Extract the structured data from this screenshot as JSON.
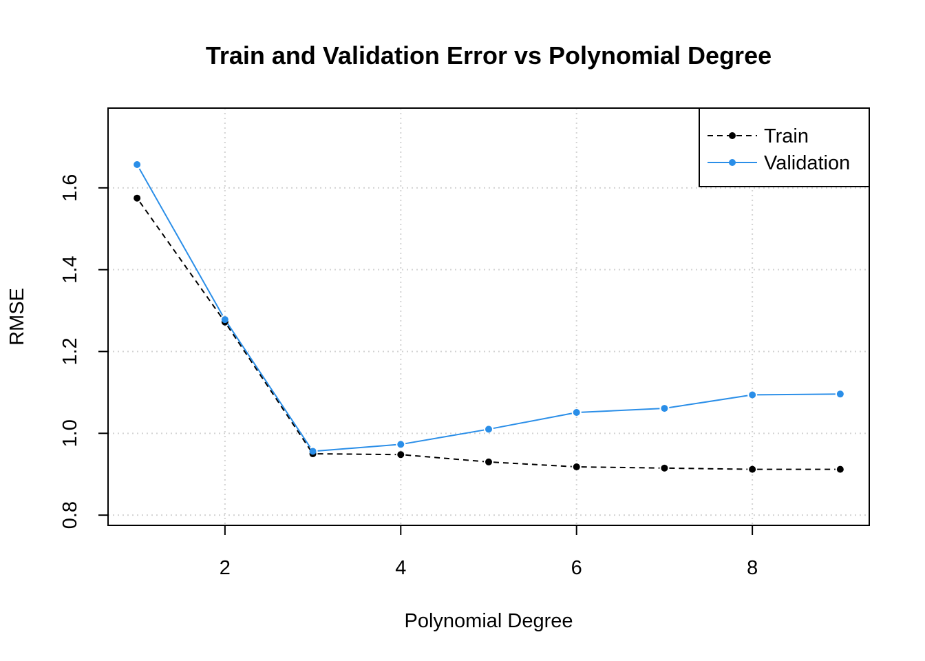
{
  "chart_data": {
    "type": "line",
    "title": "Train and Validation Error vs Polynomial Degree",
    "xlabel": "Polynomial Degree",
    "ylabel": "RMSE",
    "x": [
      1,
      2,
      3,
      4,
      5,
      6,
      7,
      8,
      9
    ],
    "xlim": [
      0.67,
      9.33
    ],
    "ylim": [
      0.775,
      1.795
    ],
    "xticks": [
      2,
      4,
      6,
      8
    ],
    "yticks": [
      0.8,
      1.0,
      1.2,
      1.4,
      1.6
    ],
    "xtick_labels": [
      "2",
      "4",
      "6",
      "8"
    ],
    "ytick_labels": [
      "0.8",
      "1.0",
      "1.2",
      "1.4",
      "1.6"
    ],
    "grid": true,
    "legend_position": "top-right",
    "series": [
      {
        "name": "Train",
        "color": "#000000",
        "linestyle": "dashed",
        "values": [
          1.575,
          1.272,
          0.95,
          0.948,
          0.93,
          0.918,
          0.915,
          0.912,
          0.912
        ]
      },
      {
        "name": "Validation",
        "color": "#2a8ee8",
        "linestyle": "solid",
        "values": [
          1.657,
          1.278,
          0.956,
          0.973,
          1.01,
          1.051,
          1.061,
          1.094,
          1.096
        ]
      }
    ]
  }
}
